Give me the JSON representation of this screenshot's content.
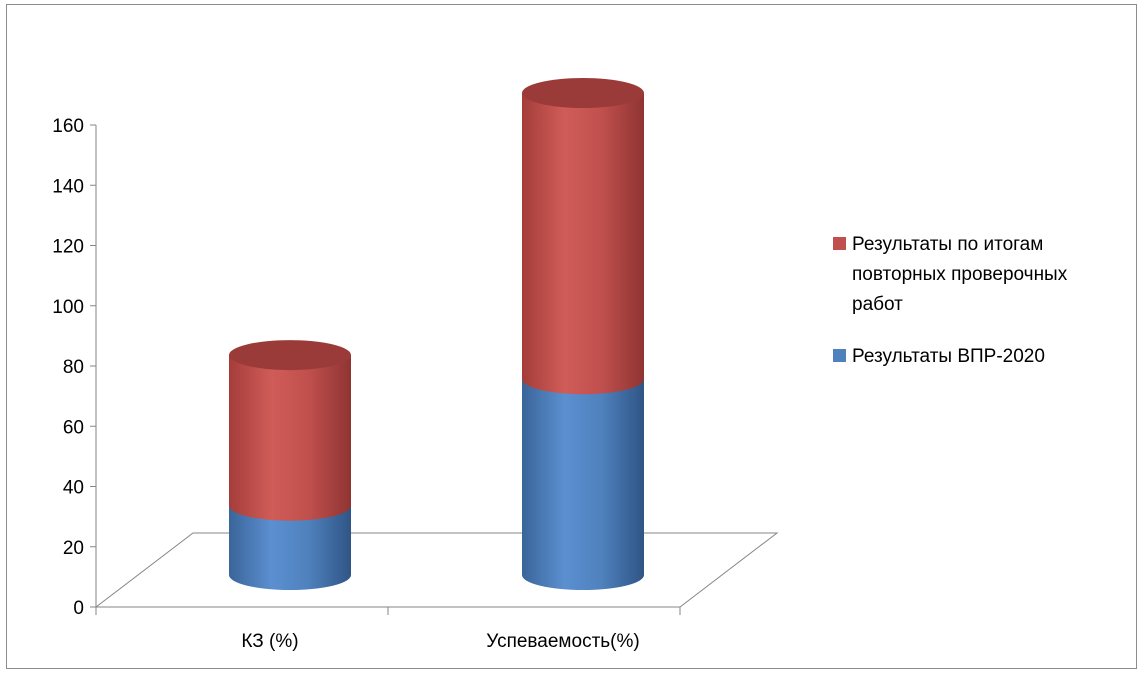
{
  "chart_data": {
    "type": "bar",
    "stacked": true,
    "style": "3d-cylinder",
    "title": "",
    "xlabel": "",
    "ylabel": "",
    "categories": [
      "КЗ (%)",
      "Успеваемость(%)"
    ],
    "ylim": [
      0,
      160
    ],
    "yticks": [
      0,
      20,
      40,
      60,
      80,
      100,
      120,
      140,
      160
    ],
    "grid": false,
    "legend_position": "right",
    "series": [
      {
        "name": "Результаты ВПР-2020",
        "values": [
          23,
          65
        ],
        "color": "#4f81bd"
      },
      {
        "name": "Результаты по итогам повторных проверочных работ",
        "values": [
          50,
          95
        ],
        "color": "#c0504d"
      }
    ],
    "legend": [
      {
        "lines": [
          "Результаты по итогам",
          "повторных проверочных",
          "работ"
        ],
        "color": "#c0504d"
      },
      {
        "lines": [
          "Результаты ВПР-2020"
        ],
        "color": "#4f81bd"
      }
    ]
  }
}
